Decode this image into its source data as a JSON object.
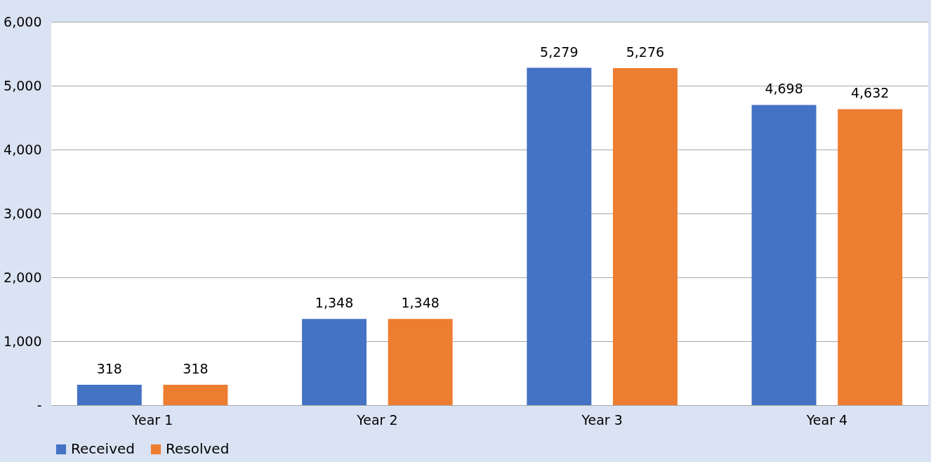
{
  "chart_data": {
    "type": "bar",
    "categories": [
      "Year 1",
      "Year 2",
      "Year 3",
      "Year 4"
    ],
    "series": [
      {
        "name": "Received",
        "color": "#4472c4",
        "values": [
          318,
          1348,
          5279,
          4698
        ],
        "value_labels": [
          "318",
          "1,348",
          "5,279",
          "4,698"
        ]
      },
      {
        "name": "Resolved",
        "color": "#ed7d31",
        "values": [
          318,
          1348,
          5276,
          4632
        ],
        "value_labels": [
          "318",
          "1,348",
          "5,276",
          "4,632"
        ]
      }
    ],
    "ylim": [
      0,
      6000
    ],
    "yticks": [
      {
        "value": 0,
        "label": "-"
      },
      {
        "value": 1000,
        "label": "1,000"
      },
      {
        "value": 2000,
        "label": "2,000"
      },
      {
        "value": 3000,
        "label": "3,000"
      },
      {
        "value": 4000,
        "label": "4,000"
      },
      {
        "value": 5000,
        "label": "5,000"
      },
      {
        "value": 6000,
        "label": "6,000"
      }
    ],
    "grid": "y",
    "legend": "bottom"
  }
}
